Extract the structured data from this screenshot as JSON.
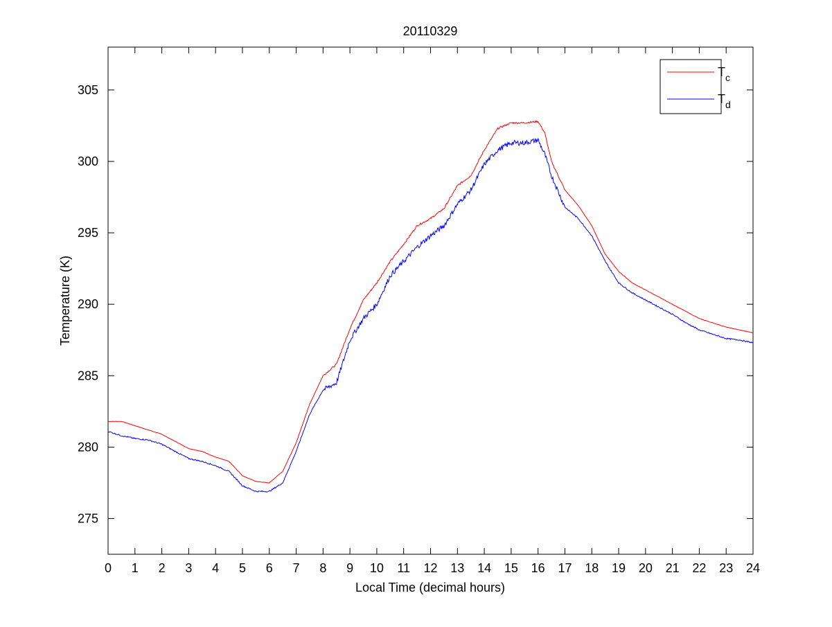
{
  "chart_data": {
    "type": "line",
    "title": "20110329",
    "xlabel": "Local Time (decimal hours)",
    "ylabel": "Temperature (K)",
    "xlim": [
      0,
      24
    ],
    "ylim": [
      272.5,
      308
    ],
    "xticks": [
      0,
      1,
      2,
      3,
      4,
      5,
      6,
      7,
      8,
      9,
      10,
      11,
      12,
      13,
      14,
      15,
      16,
      17,
      18,
      19,
      20,
      21,
      22,
      23,
      24
    ],
    "yticks": [
      275,
      280,
      285,
      290,
      295,
      300,
      305
    ],
    "grid": false,
    "legend_position": "top-right",
    "x": [
      0,
      0.5,
      1,
      1.5,
      2,
      2.5,
      3,
      3.5,
      4,
      4.5,
      5,
      5.5,
      6,
      6.5,
      7,
      7.5,
      8,
      8.5,
      9,
      9.5,
      10,
      10.5,
      11,
      11.5,
      12,
      12.5,
      13,
      13.5,
      14,
      14.5,
      15,
      15.5,
      16,
      16.25,
      16.5,
      17,
      17.5,
      18,
      18.5,
      19,
      19.5,
      20,
      20.5,
      21,
      21.5,
      22,
      22.5,
      23,
      23.5,
      24
    ],
    "series": [
      {
        "name": "T",
        "subscript": "c",
        "color": "#ff0000",
        "values": [
          281.8,
          281.8,
          281.5,
          281.2,
          280.9,
          280.4,
          279.9,
          279.7,
          279.3,
          279.0,
          278.0,
          277.6,
          277.5,
          278.3,
          280.3,
          283.0,
          285.0,
          285.8,
          288.3,
          290.3,
          291.5,
          293.0,
          294.2,
          295.5,
          296.0,
          296.7,
          298.3,
          299.0,
          300.8,
          302.3,
          302.7,
          302.7,
          302.8,
          302.0,
          300.0,
          298.0,
          296.9,
          295.5,
          293.5,
          292.3,
          291.5,
          291.0,
          290.5,
          290.0,
          289.5,
          289.0,
          288.7,
          288.4,
          288.2,
          288.0
        ]
      },
      {
        "name": "T",
        "subscript": "d",
        "color": "#0000ff",
        "values": [
          281.1,
          280.8,
          280.6,
          280.5,
          280.2,
          279.7,
          279.2,
          279.0,
          278.7,
          278.3,
          277.3,
          276.9,
          276.9,
          277.5,
          279.7,
          282.3,
          284.0,
          284.5,
          287.5,
          289.0,
          290.0,
          292.0,
          293.0,
          294.0,
          294.8,
          295.5,
          297.0,
          298.0,
          299.8,
          300.8,
          301.3,
          301.3,
          301.5,
          300.5,
          299.0,
          296.8,
          296.0,
          294.8,
          293.0,
          291.5,
          290.8,
          290.3,
          289.8,
          289.3,
          288.7,
          288.2,
          287.9,
          287.6,
          287.5,
          287.3
        ]
      }
    ]
  }
}
